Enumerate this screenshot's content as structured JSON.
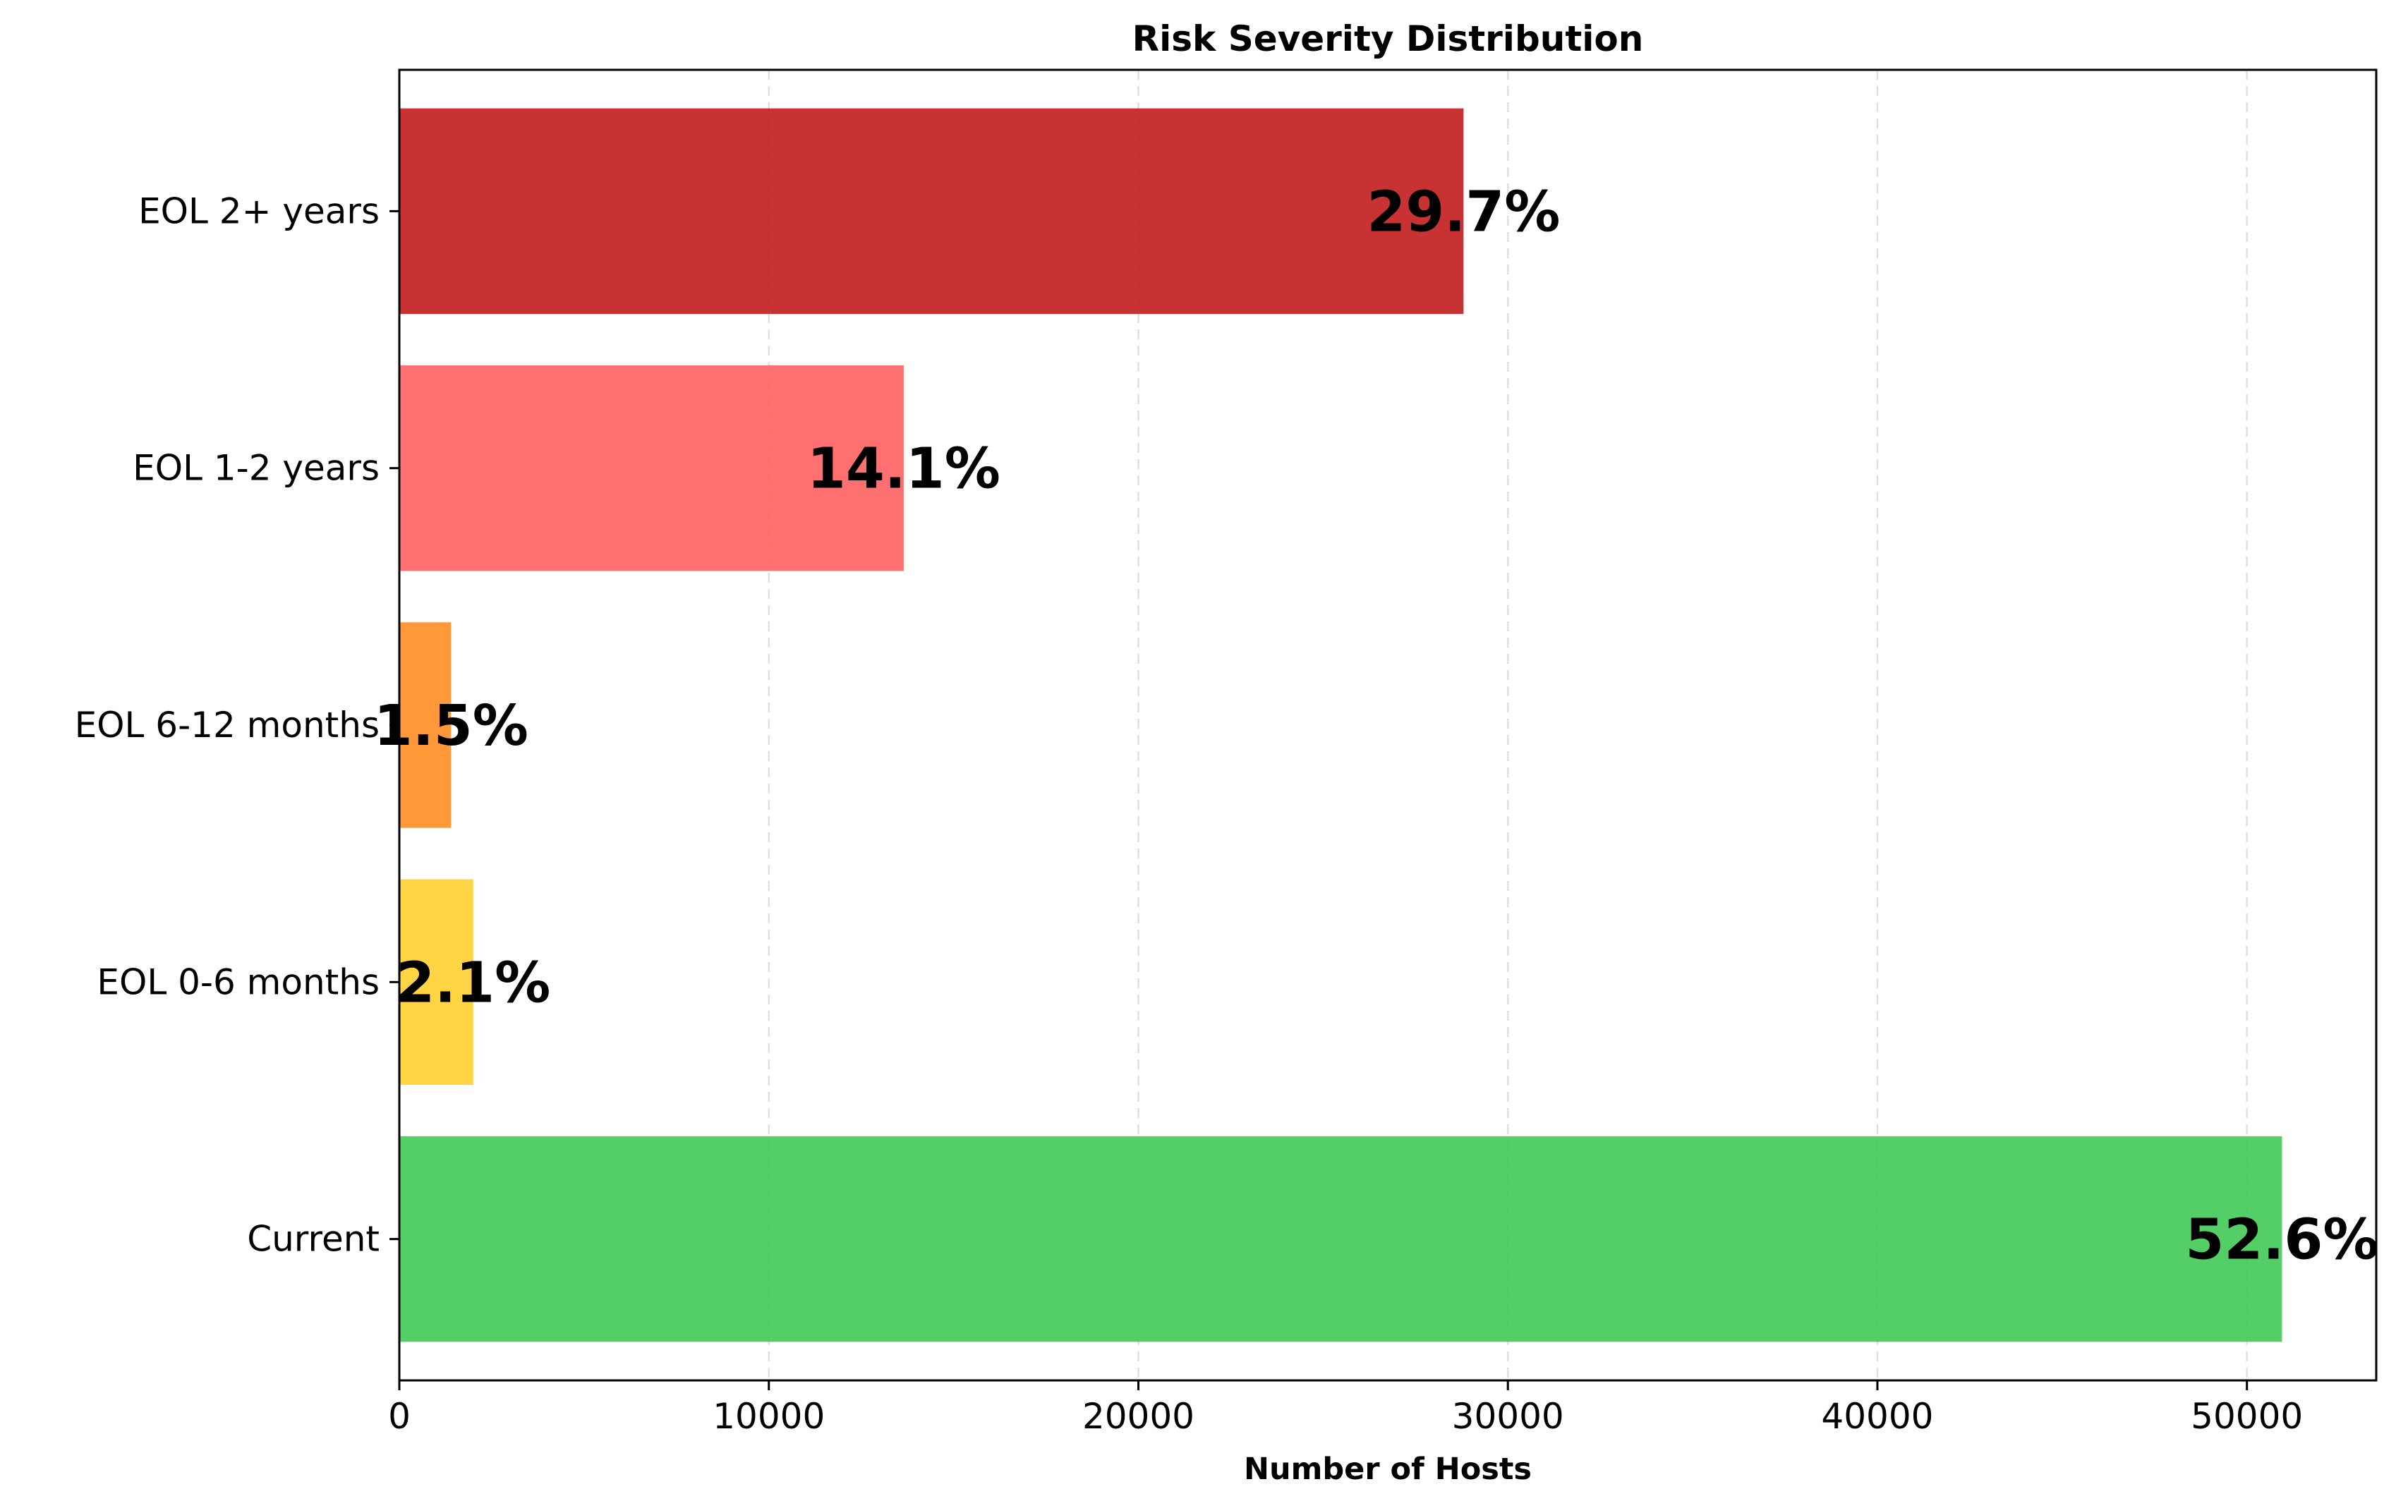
{
  "chart_data": {
    "type": "bar",
    "orientation": "horizontal",
    "title": "Risk Severity Distribution",
    "xlabel": "Number of Hosts",
    "ylabel": "",
    "categories": [
      "Current",
      "EOL 0-6 months",
      "EOL 6-12 months",
      "EOL 1-2 years",
      "EOL 2+ years"
    ],
    "values": [
      50950,
      2000,
      1400,
      13650,
      28800
    ],
    "labels": [
      "52.6%",
      "2.1%",
      "1.5%",
      "14.1%",
      "29.7%"
    ],
    "colors": [
      "#3cc852",
      "#ffce2a",
      "#ff8a1c",
      "#ff5d5d",
      "#c21616"
    ],
    "xlim": [
      0,
      53500
    ],
    "xticks": [
      0,
      10000,
      20000,
      30000,
      40000,
      50000
    ],
    "xtick_labels": [
      "0",
      "10000",
      "20000",
      "30000",
      "40000",
      "50000"
    ],
    "grid": "x, dashed",
    "legend": "none"
  }
}
